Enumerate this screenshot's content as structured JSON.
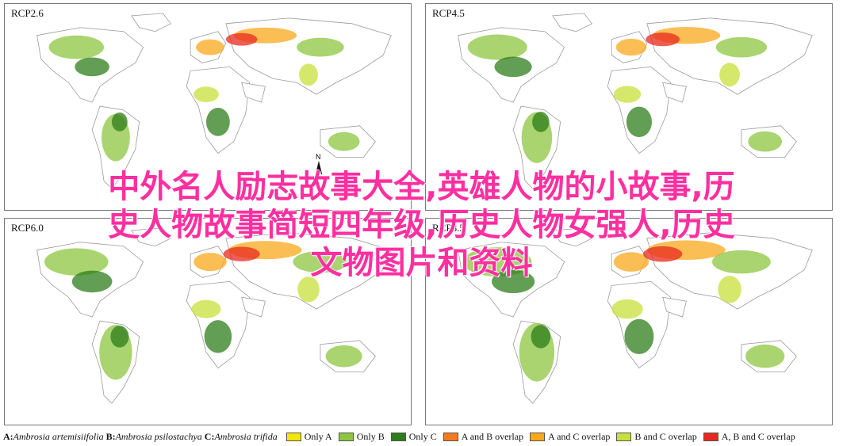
{
  "panels": [
    {
      "label": "RCP2.6"
    },
    {
      "label": "RCP4.5"
    },
    {
      "label": "RCP6.0"
    },
    {
      "label": "RCP8.5"
    }
  ],
  "north_arrow": {
    "letter": "N"
  },
  "overlay_text": {
    "line1": "中外名人励志故事大全,英雄人物的小故事,历",
    "line2": "史人物故事简短四年级,历史人物女强人,历史",
    "line3": "文物图片和资料"
  },
  "legend": {
    "species": [
      {
        "key": "A:",
        "name": "Ambrosia artemisiifolia"
      },
      {
        "key": "B:",
        "name": "Ambrosia psilostachya"
      },
      {
        "key": "C:",
        "name": "Ambrosia trifida"
      }
    ],
    "categories": [
      {
        "label": "Only A",
        "color": "#f5e600"
      },
      {
        "label": "Only B",
        "color": "#8cc63f"
      },
      {
        "label": "Only C",
        "color": "#2e7d1a"
      },
      {
        "label": "A and B overlap",
        "color": "#f47a20"
      },
      {
        "label": "A and C overlap",
        "color": "#f9a81c"
      },
      {
        "label": "B and C overlap",
        "color": "#c8e03a"
      },
      {
        "label": "A, B and C overlap",
        "color": "#e8281e"
      }
    ]
  },
  "colors": {
    "land_outline": "#9a9a9a",
    "land_fill": "#ffffff",
    "overlay_text": "#ff2fa0"
  }
}
